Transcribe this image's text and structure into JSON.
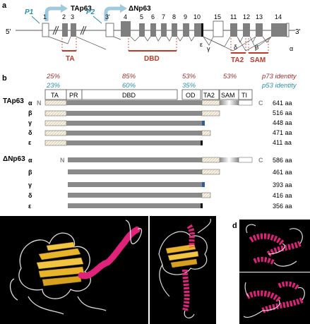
{
  "panels": {
    "a": "a",
    "b": "b",
    "c": "c",
    "d": "d"
  },
  "gene": {
    "end5": "5'",
    "end3": "3'",
    "p1": "P1",
    "p2": "P2",
    "tap63": "TAp63",
    "dnp63": "ΔNp63",
    "exons": [
      "1",
      "2",
      "3",
      "3'",
      "4",
      "5",
      "6",
      "7",
      "8",
      "9",
      "10",
      "15",
      "11",
      "12",
      "13",
      "14"
    ],
    "domains": [
      "TA",
      "DBD",
      "TA2",
      "SAM"
    ],
    "splice": [
      "ε",
      "γ",
      "δ",
      "β",
      "α"
    ]
  },
  "identity": {
    "p73_label": "p73 identity",
    "p53_label": "p53 identity",
    "p73": [
      "25%",
      "85%",
      "53%",
      "53%"
    ],
    "p53": [
      "23%",
      "60%",
      "35%"
    ],
    "colors": {
      "p73": "#a0302f",
      "p53": "#2a8fae"
    }
  },
  "domains_bar": [
    "TA",
    "PR",
    "DBD",
    "OD",
    "TA2",
    "SAM",
    "TI"
  ],
  "groups": {
    "tap63": "TAp63",
    "dnp63": "ΔNp63"
  },
  "termini": {
    "n": "N",
    "c": "C"
  },
  "isoforms_tap": [
    {
      "name": "α",
      "length": "641 aa"
    },
    {
      "name": "β",
      "length": "516 aa"
    },
    {
      "name": "γ",
      "length": "448 aa"
    },
    {
      "name": "δ",
      "length": "471 aa"
    },
    {
      "name": "ε",
      "length": "411 aa"
    }
  ],
  "isoforms_dn": [
    {
      "name": "α",
      "length": "586 aa"
    },
    {
      "name": "β",
      "length": "461 aa"
    },
    {
      "name": "γ",
      "length": "393 aa"
    },
    {
      "name": "δ",
      "length": "416 aa"
    },
    {
      "name": "ε",
      "length": "356 aa"
    }
  ],
  "colors": {
    "exon": "#7f7f7f",
    "domain": "#c0392b",
    "helix": "#e0227a",
    "sheet": "#e8b52a",
    "bar": "#8a8a8a",
    "gamma_tail": "#2d5f9e"
  }
}
